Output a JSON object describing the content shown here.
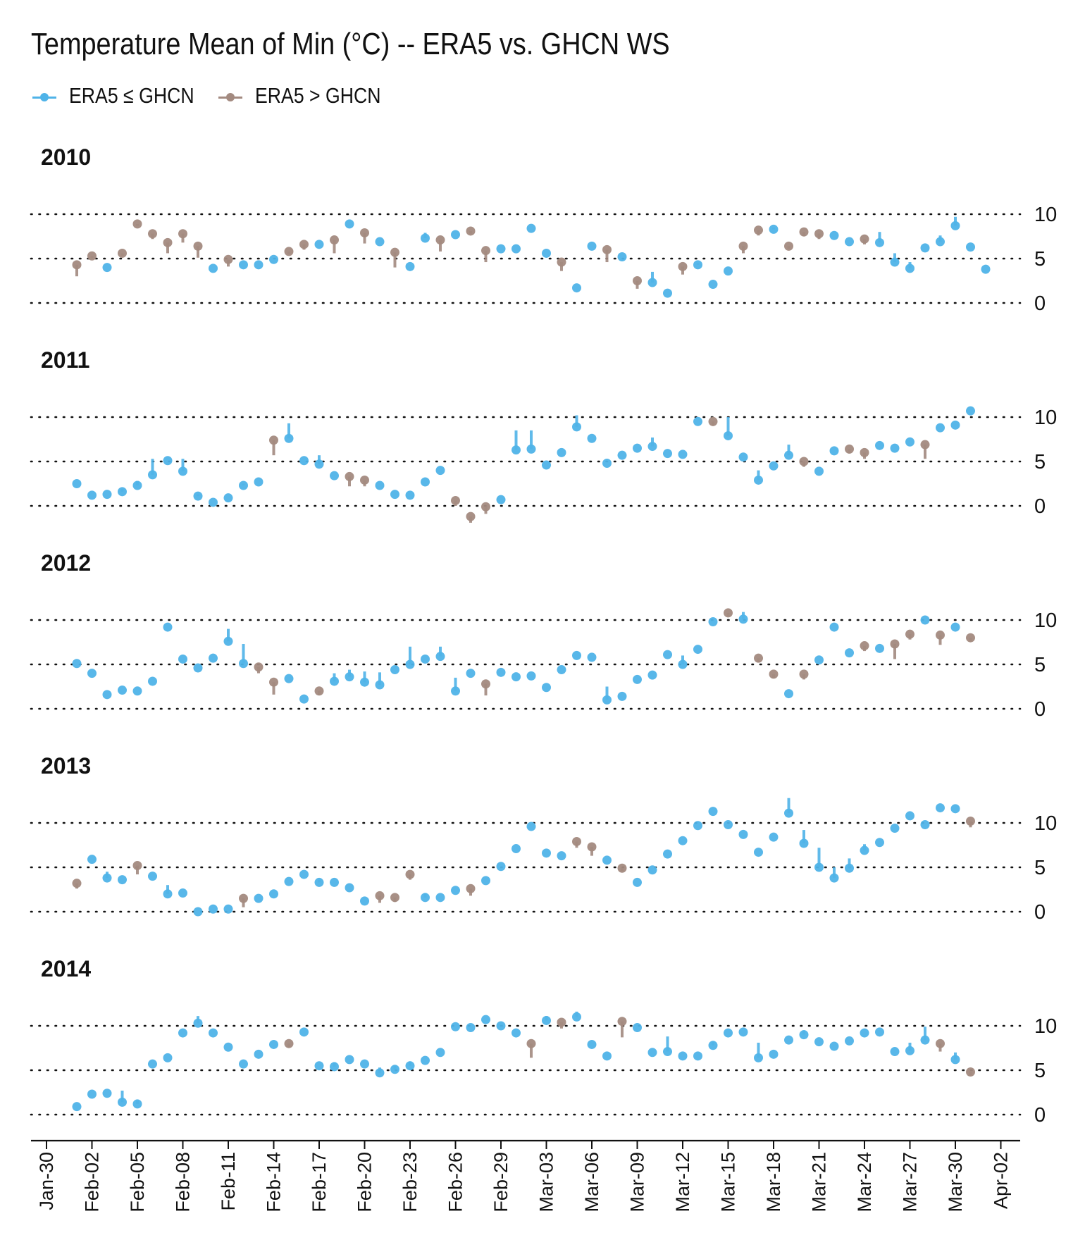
{
  "title": "Temperature Mean of Min (°C) -- ERA5 vs. GHCN WS",
  "colors": {
    "below": "#4fb3e8",
    "above": "#a38a80",
    "grid": "#111111",
    "axis": "#111111"
  },
  "legend": [
    {
      "label": "ERA5 ≤ GHCN",
      "color": "#4fb3e8"
    },
    {
      "label": "ERA5 > GHCN",
      "color": "#a38a80"
    }
  ],
  "chart_data": {
    "type": "scatter",
    "x_ticks": [
      "Jan-30",
      "Feb-02",
      "Feb-05",
      "Feb-08",
      "Feb-11",
      "Feb-14",
      "Feb-17",
      "Feb-20",
      "Feb-23",
      "Feb-26",
      "Feb-29",
      "Mar-03",
      "Mar-06",
      "Mar-09",
      "Mar-12",
      "Mar-15",
      "Mar-18",
      "Mar-21",
      "Mar-24",
      "Mar-27",
      "Mar-30",
      "Apr-02"
    ],
    "y_ticks": [
      0,
      5,
      10
    ],
    "ylim": [
      -2,
      12
    ],
    "grid": "dotted horizontal at 0, 5, 10",
    "legend_position": "top-left",
    "point_x_start": 2,
    "panels": [
      {
        "year": "2010",
        "era5": [
          4.3,
          5.3,
          4.0,
          5.6,
          8.9,
          7.8,
          6.8,
          7.8,
          6.4,
          3.9,
          4.9,
          4.3,
          4.3,
          4.9,
          5.8,
          6.6,
          6.6,
          7.1,
          8.9,
          7.9,
          6.9,
          5.7,
          4.1,
          7.3,
          7.1,
          7.7,
          8.1,
          5.9,
          6.1,
          6.1,
          8.4,
          5.6,
          4.6,
          1.7,
          6.4,
          6.0,
          5.2,
          2.5,
          2.3,
          1.1,
          4.1,
          4.3,
          2.1,
          3.6,
          6.4,
          8.2,
          8.3,
          6.4,
          8.0,
          7.8,
          7.6,
          6.9,
          7.2,
          6.8,
          4.6,
          3.9,
          6.2,
          6.9,
          8.7,
          6.3,
          3.8
        ],
        "ghcn": [
          3.0,
          5.0,
          4.0,
          5.3,
          8.7,
          7.2,
          5.6,
          6.8,
          5.1,
          3.9,
          4.1,
          4.3,
          4.3,
          4.9,
          5.5,
          6.0,
          6.6,
          5.6,
          8.9,
          6.7,
          6.9,
          4.0,
          4.1,
          7.9,
          5.8,
          7.7,
          7.8,
          4.6,
          6.1,
          6.1,
          8.4,
          5.6,
          3.6,
          1.7,
          6.4,
          4.6,
          5.2,
          1.6,
          3.5,
          1.1,
          3.2,
          4.5,
          2.1,
          3.6,
          5.6,
          7.6,
          8.5,
          6.1,
          7.5,
          7.2,
          7.6,
          6.9,
          6.6,
          8.0,
          5.6,
          4.6,
          6.2,
          7.6,
          9.7,
          6.3,
          3.8
        ]
      },
      {
        "year": "2011",
        "era5": [
          2.5,
          1.2,
          1.3,
          1.6,
          2.3,
          3.5,
          5.1,
          3.9,
          1.1,
          0.4,
          0.9,
          2.3,
          2.7,
          7.4,
          7.6,
          5.1,
          4.7,
          3.4,
          3.3,
          2.9,
          2.3,
          1.3,
          1.2,
          2.7,
          4.0,
          0.6,
          -1.2,
          -0.1,
          0.7,
          6.3,
          6.4,
          4.6,
          6.0,
          8.9,
          7.6,
          4.8,
          5.7,
          6.5,
          6.7,
          5.9,
          5.8,
          9.5,
          9.5,
          7.9,
          5.5,
          2.9,
          4.5,
          5.7,
          5.0,
          3.9,
          6.2,
          6.4,
          6.0,
          6.8,
          6.5,
          7.2,
          6.9,
          8.8,
          9.1,
          10.7
        ],
        "ghcn": [
          2.5,
          1.2,
          1.3,
          1.9,
          2.8,
          5.3,
          5.1,
          5.3,
          1.3,
          0.4,
          0.9,
          2.5,
          2.7,
          5.7,
          9.3,
          5.1,
          5.7,
          3.4,
          2.2,
          2.2,
          2.3,
          1.3,
          1.2,
          2.7,
          4.0,
          0.0,
          -1.9,
          -0.9,
          0.7,
          8.5,
          8.5,
          4.6,
          6.0,
          10.2,
          7.6,
          4.8,
          5.7,
          6.5,
          7.7,
          5.9,
          5.8,
          9.5,
          9.0,
          10.0,
          5.5,
          4.0,
          4.5,
          6.9,
          4.4,
          3.9,
          6.2,
          5.9,
          5.3,
          6.8,
          6.5,
          7.2,
          5.3,
          8.8,
          9.1,
          10.7
        ]
      },
      {
        "year": "2012",
        "era5": [
          5.1,
          4.0,
          1.6,
          2.1,
          2.0,
          3.1,
          9.2,
          5.6,
          4.6,
          5.7,
          7.6,
          5.1,
          4.7,
          3.0,
          3.4,
          1.1,
          2.0,
          3.1,
          3.6,
          3.0,
          2.7,
          4.4,
          5.0,
          5.6,
          5.9,
          2.0,
          4.0,
          2.8,
          4.1,
          3.6,
          3.7,
          2.4,
          4.4,
          6.0,
          5.8,
          1.0,
          1.4,
          3.3,
          3.8,
          6.1,
          5.0,
          6.7,
          9.8,
          10.8,
          10.1,
          5.7,
          3.9,
          1.7,
          3.9,
          5.5,
          9.2,
          6.3,
          7.1,
          6.8,
          7.3,
          8.4,
          10.0,
          8.3,
          9.2,
          8.0
        ],
        "ghcn": [
          5.1,
          4.0,
          1.6,
          2.1,
          2.0,
          3.1,
          9.2,
          5.6,
          4.6,
          5.7,
          9.0,
          7.3,
          4.0,
          1.6,
          3.4,
          1.1,
          1.6,
          4.0,
          4.4,
          4.2,
          4.1,
          4.4,
          7.0,
          5.6,
          7.0,
          3.5,
          4.0,
          1.5,
          4.1,
          3.6,
          3.7,
          2.4,
          4.4,
          6.0,
          5.8,
          2.5,
          1.4,
          3.3,
          3.8,
          6.1,
          6.0,
          6.7,
          9.8,
          10.4,
          10.9,
          5.2,
          3.5,
          1.7,
          3.3,
          5.5,
          9.2,
          6.3,
          6.5,
          6.8,
          5.6,
          7.8,
          10.0,
          7.2,
          9.2,
          7.6
        ]
      },
      {
        "year": "2013",
        "era5": [
          3.2,
          5.9,
          3.8,
          3.6,
          5.2,
          4.0,
          2.0,
          2.1,
          0.0,
          0.3,
          0.3,
          1.5,
          1.5,
          2.0,
          3.4,
          4.2,
          3.3,
          3.3,
          2.7,
          1.2,
          1.8,
          1.6,
          4.2,
          1.6,
          1.6,
          2.4,
          2.6,
          3.5,
          5.1,
          7.1,
          9.6,
          6.6,
          6.3,
          7.9,
          7.3,
          5.8,
          4.9,
          3.3,
          4.7,
          6.5,
          8.0,
          9.7,
          11.3,
          9.8,
          8.7,
          6.7,
          8.4,
          11.1,
          7.7,
          5.0,
          3.8,
          4.9,
          6.9,
          7.8,
          9.4,
          10.8,
          9.8,
          11.7,
          11.6,
          10.2
        ],
        "ghcn": [
          2.6,
          5.9,
          4.5,
          3.6,
          4.2,
          4.0,
          3.0,
          2.1,
          0.0,
          0.3,
          0.3,
          0.5,
          1.5,
          2.0,
          3.4,
          4.2,
          3.6,
          3.3,
          2.7,
          1.2,
          1.0,
          1.1,
          3.6,
          2.1,
          1.6,
          2.4,
          1.8,
          3.5,
          5.1,
          7.1,
          9.6,
          6.6,
          6.3,
          7.2,
          6.3,
          5.8,
          4.6,
          3.3,
          4.7,
          6.5,
          8.0,
          9.7,
          11.3,
          9.8,
          8.7,
          6.7,
          8.4,
          12.8,
          9.2,
          7.2,
          5.0,
          6.0,
          7.6,
          7.8,
          9.4,
          10.8,
          9.8,
          11.7,
          11.6,
          9.5
        ]
      },
      {
        "year": "2014",
        "era5": [
          0.9,
          2.3,
          2.4,
          1.4,
          1.2,
          5.7,
          6.4,
          9.2,
          10.3,
          9.2,
          7.6,
          5.7,
          6.8,
          7.9,
          8.0,
          9.3,
          5.5,
          5.4,
          6.2,
          5.7,
          4.7,
          5.1,
          5.5,
          6.1,
          7.0,
          9.9,
          9.8,
          10.7,
          10.0,
          9.2,
          8.0,
          10.6,
          10.4,
          11.0,
          7.9,
          6.6,
          10.5,
          9.8,
          7.0,
          7.1,
          6.6,
          6.6,
          7.8,
          9.2,
          9.3,
          6.4,
          6.8,
          8.4,
          9.0,
          8.2,
          7.7,
          8.3,
          9.2,
          9.3,
          7.1,
          7.2,
          8.4,
          8.0,
          6.2,
          4.8
        ],
        "ghcn": [
          0.9,
          2.3,
          2.4,
          2.7,
          1.6,
          5.7,
          6.4,
          9.2,
          11.1,
          9.2,
          7.6,
          5.7,
          6.8,
          7.9,
          7.6,
          9.3,
          5.5,
          5.9,
          6.2,
          5.7,
          5.3,
          5.5,
          6.0,
          6.1,
          7.0,
          9.9,
          9.8,
          10.7,
          10.0,
          9.2,
          6.4,
          11.1,
          9.7,
          11.6,
          7.9,
          6.6,
          8.7,
          9.8,
          7.0,
          8.8,
          6.6,
          6.6,
          8.2,
          9.2,
          9.3,
          8.1,
          6.8,
          8.4,
          9.5,
          8.2,
          7.7,
          8.3,
          9.2,
          9.3,
          7.1,
          8.1,
          9.9,
          7.1,
          7.0,
          4.4
        ]
      }
    ]
  }
}
